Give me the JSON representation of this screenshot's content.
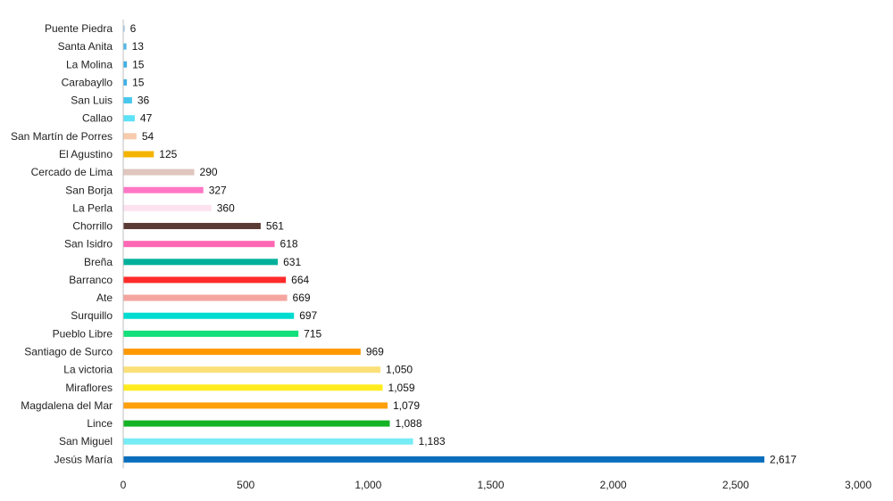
{
  "chart_data": {
    "type": "bar",
    "orientation": "horizontal",
    "title": "",
    "xlabel": "",
    "ylabel": "",
    "xlim": [
      0,
      3000
    ],
    "x_ticks": [
      0,
      500,
      1000,
      1500,
      2000,
      2500,
      3000
    ],
    "x_tick_labels": [
      "0",
      "500",
      "1,000",
      "1,500",
      "2,000",
      "2,500",
      "3,000"
    ],
    "grid": false,
    "legend": "none",
    "categories": [
      "Puente Piedra",
      "Santa Anita",
      "La Molina",
      "Carabayllo",
      "San Luis",
      "Callao",
      "San Martín de Porres",
      "El Agustino",
      "Cercado de Lima",
      "San Borja",
      "La Perla",
      "Chorrillo",
      "San Isidro",
      "Breña",
      "Barranco",
      "Ate",
      "Surquillo",
      "Pueblo Libre",
      "Santiago de Surco",
      "La victoria",
      "Miraflores",
      "Magdalena del Mar",
      "Lince",
      "San Miguel",
      "Jesús María"
    ],
    "values": [
      6,
      13,
      15,
      15,
      36,
      47,
      54,
      125,
      290,
      327,
      360,
      561,
      618,
      631,
      664,
      669,
      697,
      715,
      969,
      1050,
      1059,
      1079,
      1088,
      1183,
      2617
    ],
    "value_labels": [
      "6",
      "13",
      "15",
      "15",
      "36",
      "47",
      "54",
      "125",
      "290",
      "327",
      "360",
      "561",
      "618",
      "631",
      "664",
      "669",
      "697",
      "715",
      "969",
      "1,050",
      "1,059",
      "1,079",
      "1,088",
      "1,183",
      "2,617"
    ],
    "colors": [
      "#9dc3e6",
      "#4fb8e8",
      "#3fb0e6",
      "#3fb0e6",
      "#47c7ee",
      "#5ee2f7",
      "#f8cbad",
      "#f4b400",
      "#e0c6bf",
      "#ff77c5",
      "#fde2ef",
      "#5b3a36",
      "#ff66b3",
      "#00b09b",
      "#ff2a2a",
      "#f5a59f",
      "#00dcd0",
      "#12e07a",
      "#ff9900",
      "#fbe07a",
      "#ffec1f",
      "#ff9f0a",
      "#14b325",
      "#76ecf6",
      "#0a6ebd"
    ]
  }
}
